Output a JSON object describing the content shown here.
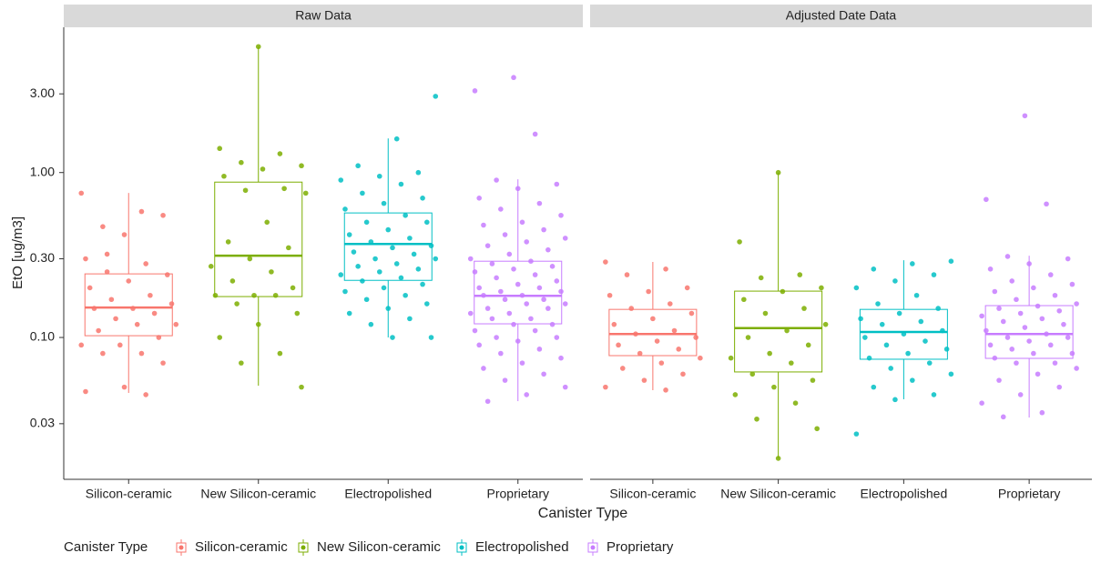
{
  "chart_data": {
    "type": "box",
    "log_scale": true,
    "x_label": "Canister Type",
    "y_label": "EtO [ug/m3]",
    "legend_title": "Canister Type",
    "categories": [
      "Silicon-ceramic",
      "New Silicon-ceramic",
      "Electropolished",
      "Proprietary"
    ],
    "colors": [
      "#F8766D",
      "#7CAE00",
      "#00BFC4",
      "#C77CFF"
    ],
    "ylim": [
      0.0138,
      7.6
    ],
    "yticks": [
      {
        "value": 0.03,
        "label": "0.03"
      },
      {
        "value": 0.1,
        "label": "0.10"
      },
      {
        "value": 0.3,
        "label": "0.30"
      },
      {
        "value": 1,
        "label": "1.00"
      },
      {
        "value": 3,
        "label": "3.00"
      }
    ],
    "panels": [
      {
        "title": "Raw Data",
        "groups": [
          {
            "whisker_low": 0.0461,
            "q1": 0.1025,
            "median": 0.152,
            "q3": 0.243,
            "whisker_high": 0.752,
            "points": [
              0.75,
              0.58,
              0.47,
              0.55,
              0.42,
              0.3,
              0.28,
              0.25,
              0.24,
              0.22,
              0.2,
              0.18,
              0.17,
              0.16,
              0.15,
              0.15,
              0.14,
              0.13,
              0.12,
              0.12,
              0.11,
              0.1,
              0.09,
              0.09,
              0.08,
              0.08,
              0.07,
              0.05,
              0.047,
              0.045,
              0.32
            ]
          },
          {
            "whisker_low": 0.051,
            "q1": 0.177,
            "median": 0.313,
            "q3": 0.875,
            "whisker_high": 5.8,
            "points": [
              5.8,
              1.4,
              1.3,
              1.15,
              1.1,
              1.05,
              0.95,
              0.8,
              0.78,
              0.75,
              0.5,
              0.38,
              0.35,
              0.3,
              0.27,
              0.25,
              0.22,
              0.2,
              0.18,
              0.18,
              0.18,
              0.16,
              0.14,
              0.12,
              0.1,
              0.08,
              0.07,
              0.05
            ]
          },
          {
            "whisker_low": 0.1,
            "q1": 0.222,
            "median": 0.369,
            "q3": 0.569,
            "whisker_high": 1.61,
            "points": [
              2.9,
              1.6,
              1.1,
              1.0,
              0.95,
              0.9,
              0.85,
              0.75,
              0.7,
              0.65,
              0.6,
              0.55,
              0.5,
              0.5,
              0.45,
              0.42,
              0.4,
              0.38,
              0.36,
              0.35,
              0.33,
              0.32,
              0.3,
              0.3,
              0.28,
              0.27,
              0.26,
              0.25,
              0.24,
              0.23,
              0.22,
              0.21,
              0.2,
              0.19,
              0.18,
              0.17,
              0.16,
              0.15,
              0.14,
              0.13,
              0.12,
              0.1,
              0.1
            ]
          },
          {
            "whisker_low": 0.0411,
            "q1": 0.121,
            "median": 0.179,
            "q3": 0.29,
            "whisker_high": 0.91,
            "points": [
              3.77,
              3.13,
              1.71,
              0.9,
              0.85,
              0.8,
              0.7,
              0.65,
              0.6,
              0.55,
              0.5,
              0.48,
              0.45,
              0.42,
              0.4,
              0.38,
              0.36,
              0.34,
              0.32,
              0.3,
              0.29,
              0.28,
              0.27,
              0.26,
              0.25,
              0.24,
              0.23,
              0.22,
              0.21,
              0.2,
              0.2,
              0.19,
              0.19,
              0.18,
              0.18,
              0.17,
              0.17,
              0.16,
              0.16,
              0.15,
              0.15,
              0.14,
              0.14,
              0.13,
              0.13,
              0.12,
              0.12,
              0.11,
              0.11,
              0.1,
              0.1,
              0.095,
              0.09,
              0.085,
              0.08,
              0.075,
              0.07,
              0.065,
              0.06,
              0.055,
              0.05,
              0.045,
              0.041
            ]
          }
        ]
      },
      {
        "title": "Adjusted Date Data",
        "groups": [
          {
            "whisker_low": 0.0479,
            "q1": 0.0776,
            "median": 0.105,
            "q3": 0.148,
            "whisker_high": 0.287,
            "points": [
              0.287,
              0.26,
              0.24,
              0.2,
              0.19,
              0.18,
              0.16,
              0.15,
              0.14,
              0.13,
              0.12,
              0.11,
              0.105,
              0.1,
              0.095,
              0.09,
              0.085,
              0.08,
              0.075,
              0.07,
              0.065,
              0.06,
              0.055,
              0.05,
              0.048
            ]
          },
          {
            "whisker_low": 0.0185,
            "q1": 0.0618,
            "median": 0.114,
            "q3": 0.191,
            "whisker_high": 1.0,
            "points": [
              1.0,
              0.38,
              0.24,
              0.23,
              0.2,
              0.19,
              0.17,
              0.15,
              0.14,
              0.12,
              0.11,
              0.1,
              0.09,
              0.08,
              0.075,
              0.07,
              0.06,
              0.055,
              0.05,
              0.045,
              0.04,
              0.032,
              0.028,
              0.0185
            ]
          },
          {
            "whisker_low": 0.0422,
            "q1": 0.0738,
            "median": 0.108,
            "q3": 0.148,
            "whisker_high": 0.294,
            "points": [
              0.29,
              0.28,
              0.26,
              0.24,
              0.22,
              0.2,
              0.18,
              0.16,
              0.15,
              0.14,
              0.13,
              0.125,
              0.12,
              0.11,
              0.105,
              0.1,
              0.095,
              0.09,
              0.085,
              0.08,
              0.075,
              0.07,
              0.065,
              0.06,
              0.055,
              0.05,
              0.045,
              0.042,
              0.026
            ]
          },
          {
            "whisker_low": 0.0327,
            "q1": 0.0747,
            "median": 0.105,
            "q3": 0.156,
            "whisker_high": 0.313,
            "points": [
              2.21,
              0.687,
              0.645,
              0.31,
              0.3,
              0.28,
              0.26,
              0.24,
              0.22,
              0.21,
              0.2,
              0.19,
              0.18,
              0.17,
              0.16,
              0.155,
              0.15,
              0.145,
              0.14,
              0.135,
              0.13,
              0.125,
              0.12,
              0.115,
              0.11,
              0.105,
              0.1,
              0.1,
              0.095,
              0.09,
              0.09,
              0.085,
              0.08,
              0.08,
              0.075,
              0.07,
              0.07,
              0.065,
              0.06,
              0.055,
              0.05,
              0.045,
              0.04,
              0.035,
              0.033
            ]
          }
        ]
      }
    ]
  }
}
